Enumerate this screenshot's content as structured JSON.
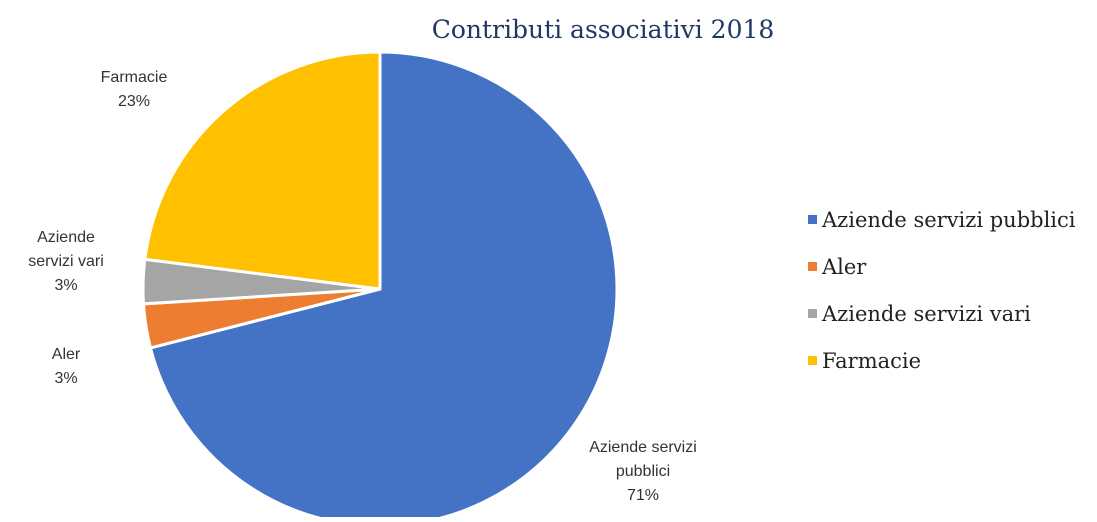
{
  "chart_data": {
    "type": "pie",
    "title": "Contributi associativi 2018",
    "categories": [
      "Aziende servizi pubblici",
      "Aler",
      "Aziende servizi vari",
      "Farmacie"
    ],
    "values": [
      71,
      3,
      3,
      23
    ],
    "value_unit": "%",
    "colors": [
      "#4472c4",
      "#ed7d31",
      "#a5a5a5",
      "#ffc000"
    ],
    "data_labels": [
      {
        "lines": [
          "Aziende servizi",
          "pubblici",
          "71%"
        ]
      },
      {
        "lines": [
          "Aler",
          "3%"
        ]
      },
      {
        "lines": [
          "Aziende",
          "servizi vari",
          "3%"
        ]
      },
      {
        "lines": [
          "Farmacie",
          "23%"
        ]
      }
    ],
    "legend": {
      "position": "right",
      "entries": [
        "Aziende servizi pubblici",
        "Aler",
        "Aziende servizi vari",
        "Farmacie"
      ]
    },
    "start_angle": "12 o'clock",
    "direction": "clockwise"
  }
}
